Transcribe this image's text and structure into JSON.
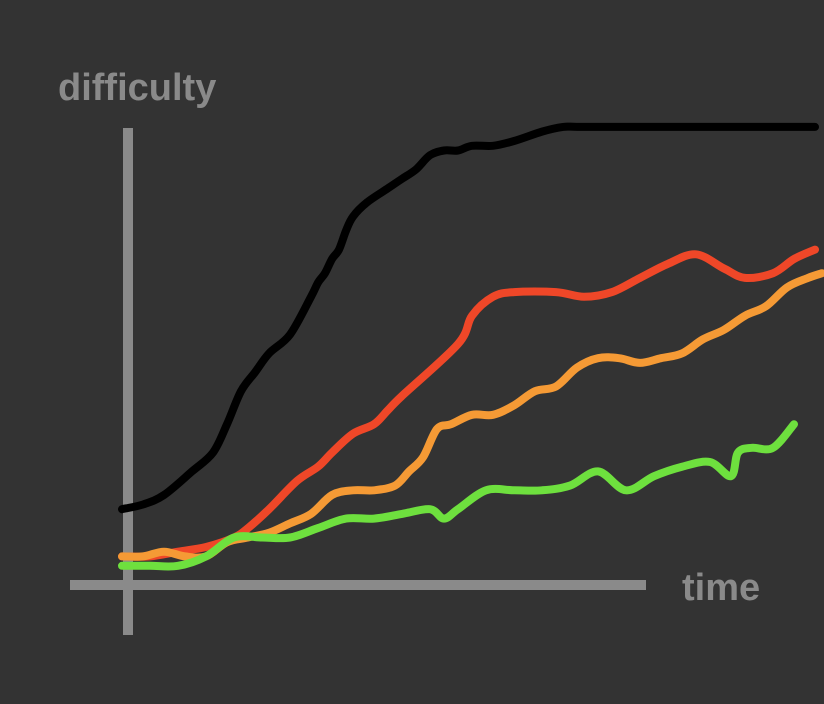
{
  "chart_data": {
    "type": "line",
    "xlabel": "time",
    "ylabel": "difficulty",
    "xlim": [
      0,
      100
    ],
    "ylim": [
      0,
      100
    ],
    "grid": false,
    "legend": "none",
    "axis_color": "#8a8a8a",
    "background": "#333333",
    "series": [
      {
        "color": "#000000",
        "x": [
          0,
          3,
          6,
          10,
          13,
          15,
          17,
          19,
          21,
          24,
          27,
          28,
          29,
          30,
          31,
          32,
          33,
          35,
          38,
          40,
          42,
          44,
          46,
          48,
          50,
          53,
          56,
          60,
          63,
          65,
          70,
          76,
          80,
          84,
          88,
          90,
          95,
          99
        ],
        "y": [
          15,
          16,
          18,
          23,
          27,
          33,
          40,
          44,
          48,
          52,
          60,
          63,
          65,
          68,
          70,
          74,
          77,
          80,
          83,
          85,
          87,
          90,
          91,
          91,
          92,
          92,
          93,
          95,
          96,
          96,
          96,
          96,
          96,
          96,
          96,
          96,
          96,
          96
        ]
      },
      {
        "color": "#ef4728",
        "x": [
          0,
          4,
          8,
          12,
          16,
          18,
          21,
          25,
          28,
          30,
          33,
          36,
          38,
          40,
          48,
          50,
          53,
          56,
          62,
          66,
          70,
          74,
          78,
          82,
          86,
          89,
          93,
          96,
          99
        ],
        "y": [
          5,
          5,
          6,
          7,
          9,
          11,
          15,
          21,
          24,
          27,
          31,
          33,
          36,
          39,
          50,
          56,
          60,
          61,
          61,
          60,
          61,
          64,
          67,
          69,
          66,
          64,
          65,
          68,
          70
        ]
      },
      {
        "color": "#f59a35",
        "x": [
          0,
          3,
          6,
          9,
          12,
          15,
          18,
          21,
          24,
          27,
          30,
          33,
          36,
          39,
          41,
          43,
          45,
          47,
          50,
          53,
          56,
          59,
          62,
          65,
          68,
          71,
          74,
          77,
          80,
          83,
          86,
          89,
          92,
          95,
          98,
          100
        ],
        "y": [
          5,
          5,
          6,
          5,
          5,
          8,
          9,
          10,
          12,
          14,
          18,
          19,
          19,
          20,
          23,
          26,
          32,
          33,
          35,
          35,
          37,
          40,
          41,
          45,
          47,
          47,
          46,
          47,
          48,
          51,
          53,
          56,
          58,
          62,
          64,
          65
        ]
      },
      {
        "color": "#6ee03e",
        "x": [
          0,
          4,
          8,
          12,
          16,
          20,
          24,
          28,
          32,
          36,
          40,
          44,
          46,
          48,
          52,
          56,
          60,
          64,
          68,
          72,
          76,
          80,
          84,
          87,
          88,
          90,
          93,
          96
        ],
        "y": [
          3,
          3,
          3,
          5,
          9,
          9,
          9,
          11,
          13,
          13,
          14,
          15,
          13,
          15,
          19,
          19,
          19,
          20,
          23,
          19,
          22,
          24,
          25,
          22,
          27,
          28,
          28,
          33
        ]
      }
    ]
  }
}
